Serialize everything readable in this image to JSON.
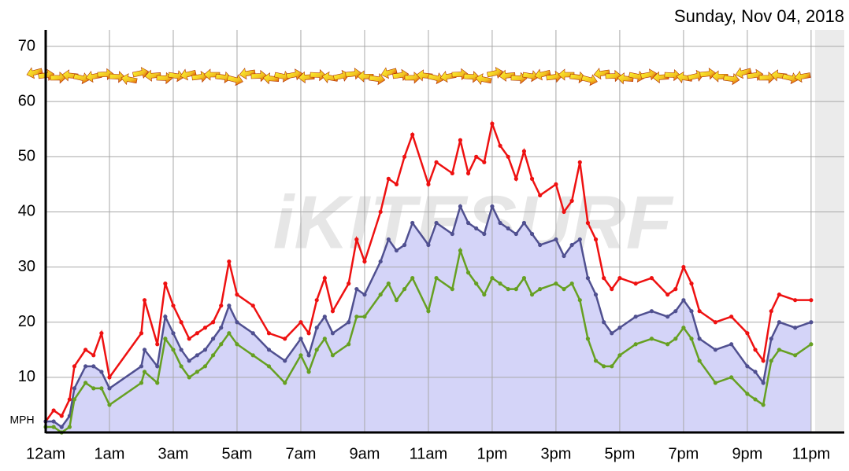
{
  "chart_data": {
    "type": "line",
    "date": "Sunday, Nov 04, 2018",
    "watermark": "iKITESURF",
    "y_label": "MPH",
    "xlim": [
      0,
      25.04
    ],
    "ylim": [
      0,
      73
    ],
    "yticks": [
      10,
      20,
      30,
      40,
      50,
      60,
      70
    ],
    "xticks": [
      {
        "value": 0,
        "label": "12am"
      },
      {
        "value": 2,
        "label": "1am"
      },
      {
        "value": 4,
        "label": "3am"
      },
      {
        "value": 6,
        "label": "5am"
      },
      {
        "value": 8,
        "label": "7am"
      },
      {
        "value": 10,
        "label": "9am"
      },
      {
        "value": 12,
        "label": "11am"
      },
      {
        "value": 14,
        "label": "1pm"
      },
      {
        "value": 16,
        "label": "3pm"
      },
      {
        "value": 18,
        "label": "5pm"
      },
      {
        "value": 20,
        "label": "7pm"
      },
      {
        "value": 22,
        "label": "9pm"
      },
      {
        "value": 24,
        "label": "11pm"
      }
    ],
    "grid": true,
    "x": [
      0,
      0.25,
      0.5,
      0.75,
      0.9,
      1.25,
      1.5,
      1.75,
      2,
      3,
      3.1,
      3.5,
      3.75,
      4,
      4.25,
      4.5,
      4.75,
      5,
      5.25,
      5.5,
      5.75,
      6,
      6.5,
      7,
      7.5,
      8,
      8.25,
      8.5,
      8.75,
      9,
      9.5,
      9.75,
      10,
      10.5,
      10.75,
      11,
      11.25,
      11.5,
      12,
      12.25,
      12.75,
      13,
      13.25,
      13.5,
      13.75,
      14,
      14.25,
      14.5,
      14.75,
      15,
      15.25,
      15.5,
      16,
      16.25,
      16.5,
      16.75,
      17,
      17.25,
      17.5,
      17.75,
      18,
      18.5,
      19,
      19.5,
      19.75,
      20,
      20.25,
      20.5,
      21,
      21.5,
      22,
      22.25,
      22.5,
      22.75,
      23,
      23.5,
      24
    ],
    "series": [
      {
        "color": "#ee1111",
        "values": [
          2,
          4,
          3,
          6,
          12,
          15,
          14,
          18,
          10,
          18,
          24,
          16,
          27,
          23,
          20,
          17,
          18,
          19,
          20,
          23,
          31,
          25,
          23,
          18,
          17,
          20,
          18,
          24,
          28,
          22,
          27,
          35,
          31,
          40,
          46,
          45,
          50,
          54,
          45,
          49,
          47,
          53,
          47,
          50,
          49,
          56,
          52,
          50,
          46,
          51,
          46,
          43,
          45,
          40,
          42,
          49,
          38,
          35,
          28,
          26,
          28,
          27,
          28,
          25,
          26,
          30,
          27,
          22,
          20,
          21,
          18,
          15,
          13,
          22,
          25,
          24,
          24
        ]
      },
      {
        "color": "#505090",
        "fill": "#d4d4f8",
        "values": [
          2,
          2,
          1,
          3,
          8,
          12,
          12,
          11,
          8,
          12,
          15,
          12,
          21,
          18,
          15,
          13,
          14,
          15,
          17,
          19,
          23,
          20,
          18,
          15,
          13,
          17,
          14,
          19,
          21,
          18,
          20,
          26,
          25,
          31,
          35,
          33,
          34,
          38,
          34,
          38,
          36,
          41,
          38,
          37,
          36,
          41,
          38,
          37,
          36,
          38,
          36,
          34,
          35,
          32,
          34,
          35,
          28,
          25,
          20,
          18,
          19,
          21,
          22,
          21,
          22,
          24,
          22,
          17,
          15,
          16,
          12,
          11,
          9,
          17,
          20,
          19,
          20
        ]
      },
      {
        "color": "#66a022",
        "values": [
          1,
          1,
          0,
          1,
          6,
          9,
          8,
          8,
          5,
          9,
          11,
          9,
          17,
          15,
          12,
          10,
          11,
          12,
          14,
          16,
          18,
          16,
          14,
          12,
          9,
          14,
          11,
          15,
          17,
          14,
          16,
          21,
          21,
          25,
          27,
          24,
          26,
          28,
          22,
          28,
          26,
          33,
          29,
          27,
          25,
          28,
          27,
          26,
          26,
          28,
          25,
          26,
          27,
          26,
          27,
          24,
          17,
          13,
          12,
          12,
          14,
          16,
          17,
          16,
          17,
          19,
          17,
          13,
          9,
          10,
          7,
          6,
          5,
          13,
          15,
          14,
          16
        ]
      }
    ]
  }
}
